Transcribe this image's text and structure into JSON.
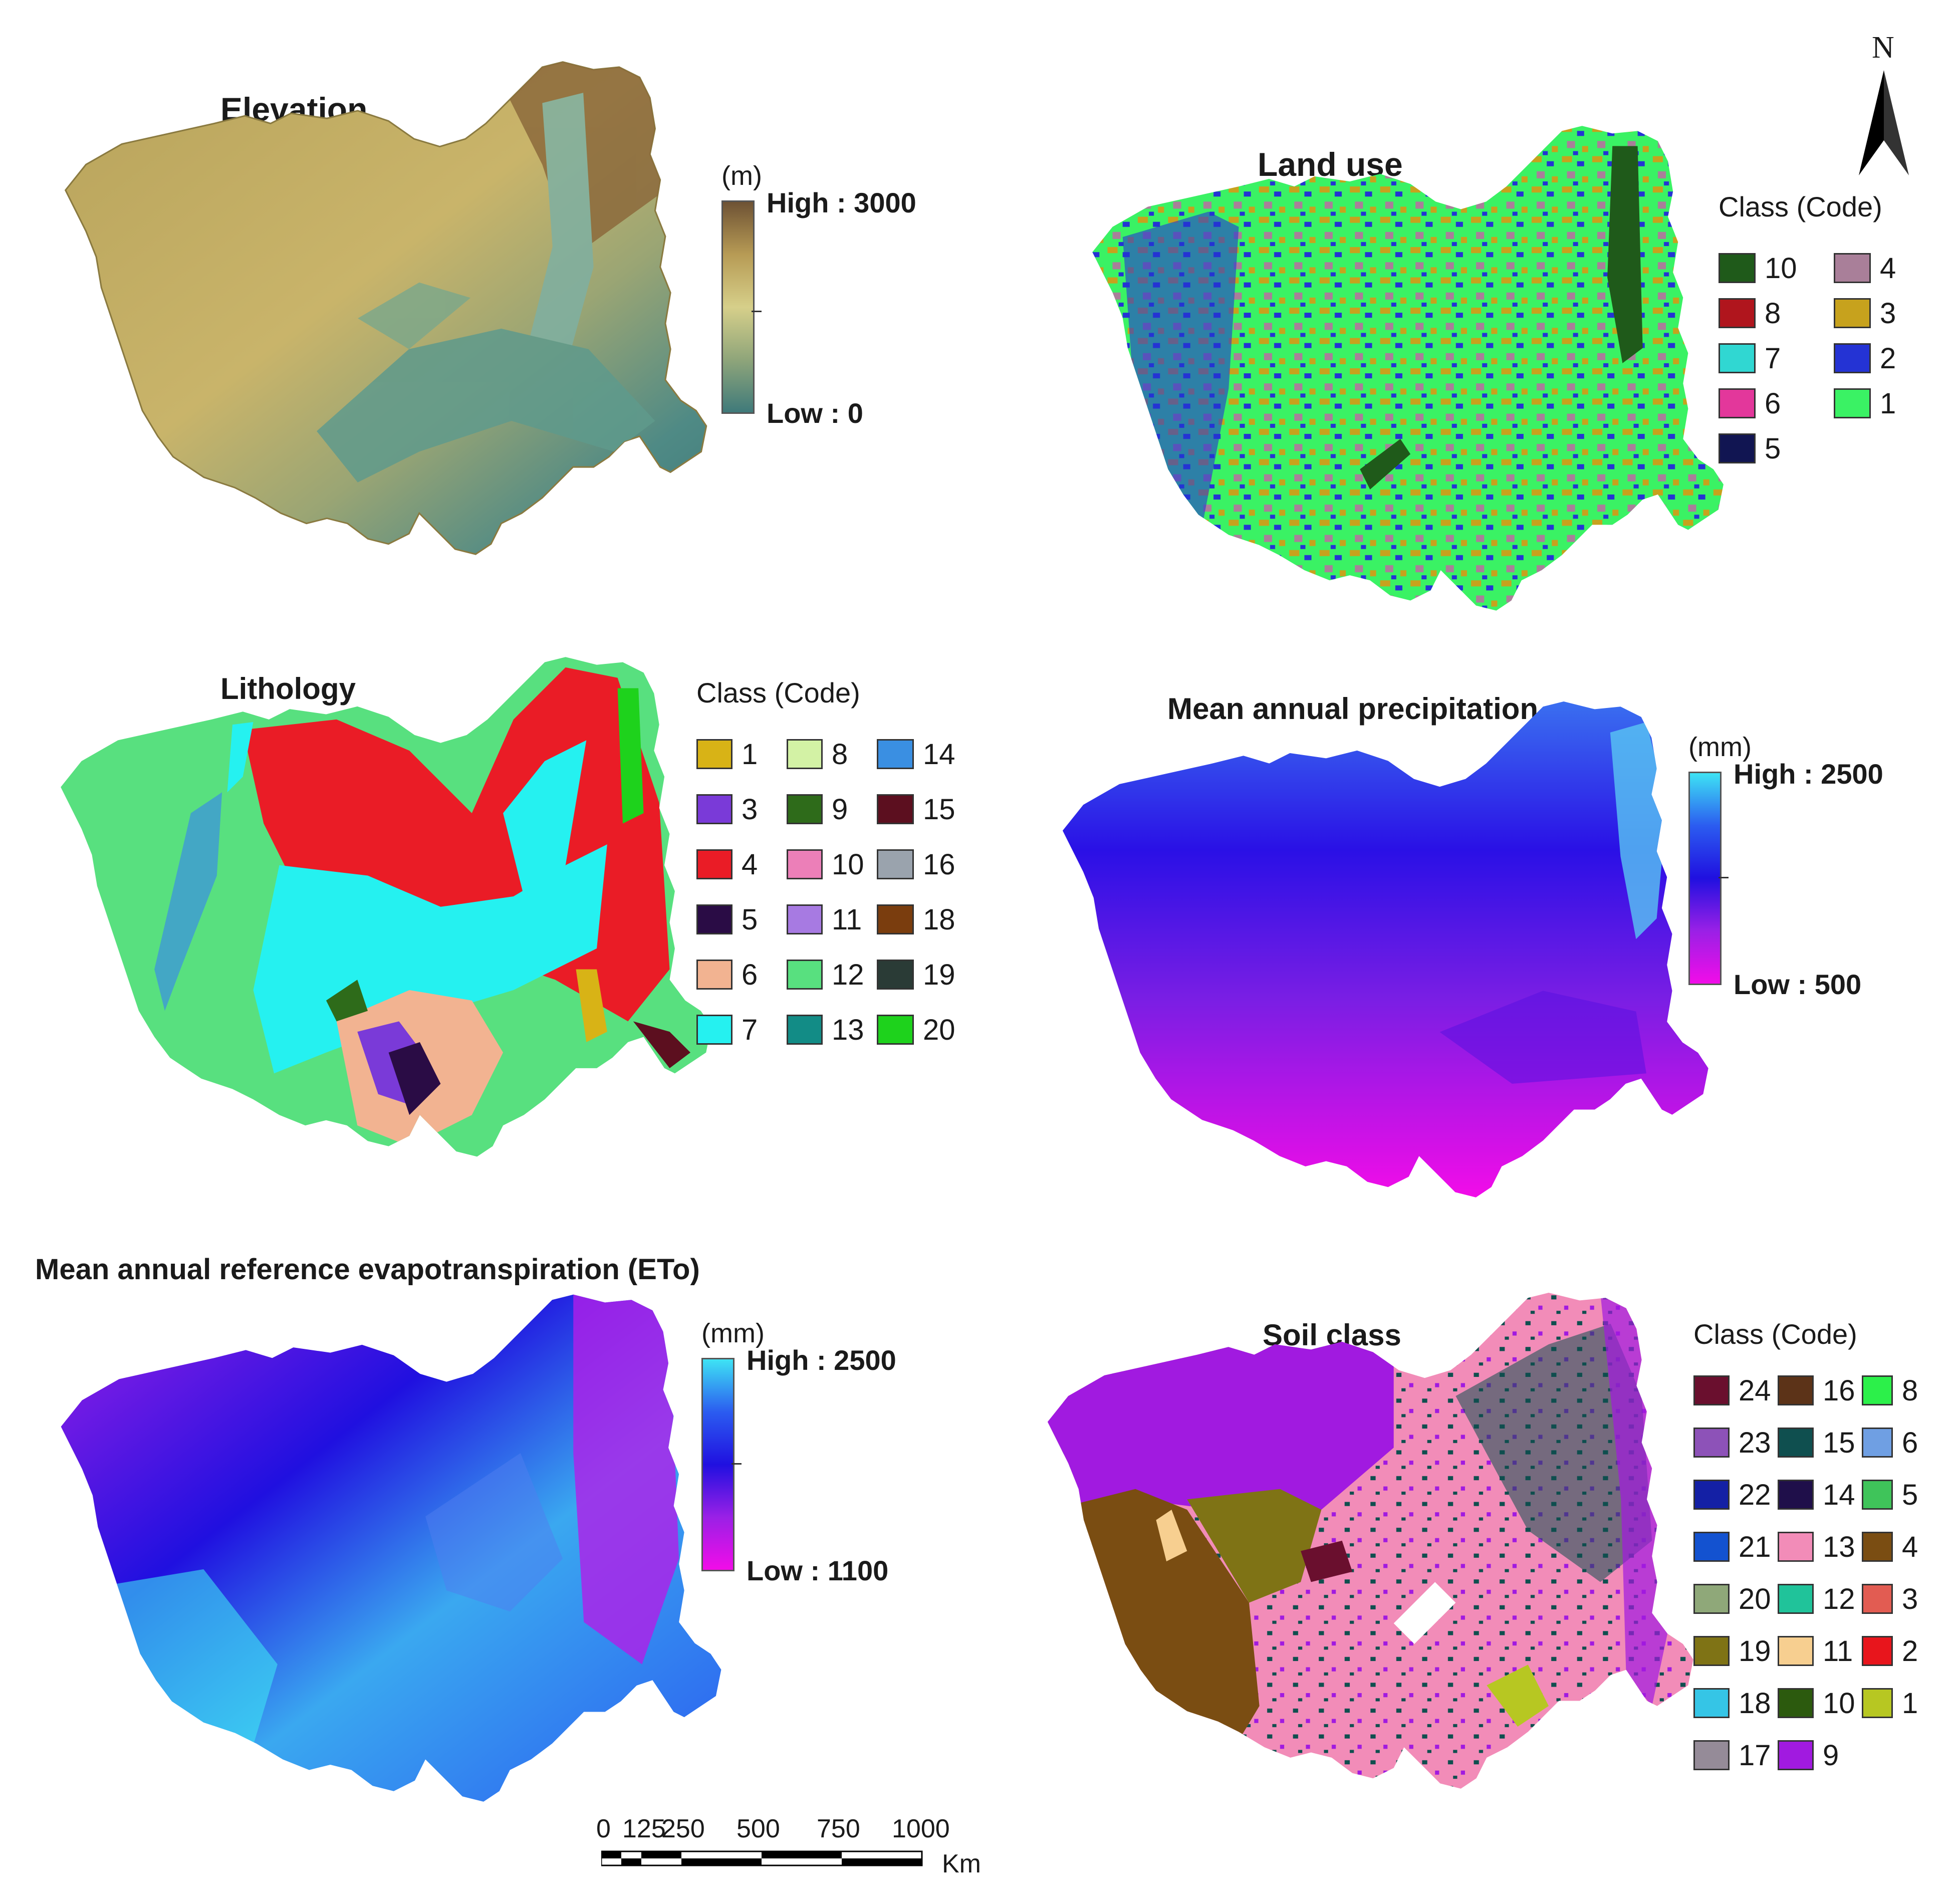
{
  "panels": {
    "elevation": {
      "title": "Elevation",
      "unit": "(m)",
      "high_label": "High : 3000",
      "low_label": "Low : 0",
      "ramp_colors": [
        "#6e5234",
        "#b79b55",
        "#d6cf8a",
        "#8fa57a",
        "#3f7a7a"
      ]
    },
    "land_use": {
      "title": "Land use",
      "legend_title": "Class (Code)",
      "classes": [
        {
          "code": "10",
          "color": "#1f5a1a"
        },
        {
          "code": "4",
          "color": "#a97f99"
        },
        {
          "code": "8",
          "color": "#b0151d"
        },
        {
          "code": "3",
          "color": "#c7a21d"
        },
        {
          "code": "7",
          "color": "#30d7d2"
        },
        {
          "code": "2",
          "color": "#2433d4"
        },
        {
          "code": "6",
          "color": "#e3379b"
        },
        {
          "code": "1",
          "color": "#3af264"
        },
        {
          "code": "5",
          "color": "#111552"
        }
      ]
    },
    "lithology": {
      "title": "Lithology",
      "legend_title": "Class (Code)",
      "classes": [
        {
          "code": "1",
          "color": "#d8b316"
        },
        {
          "code": "8",
          "color": "#d3f2a5"
        },
        {
          "code": "14",
          "color": "#3a8fe2"
        },
        {
          "code": "3",
          "color": "#7a3ad8"
        },
        {
          "code": "9",
          "color": "#2e6b1a"
        },
        {
          "code": "15",
          "color": "#5c0f1f"
        },
        {
          "code": "4",
          "color": "#ea1c26"
        },
        {
          "code": "10",
          "color": "#ec7fb8"
        },
        {
          "code": "16",
          "color": "#9aa3ad"
        },
        {
          "code": "5",
          "color": "#2a0c45"
        },
        {
          "code": "11",
          "color": "#a77ae2"
        },
        {
          "code": "18",
          "color": "#7a3d0e"
        },
        {
          "code": "6",
          "color": "#f2b391"
        },
        {
          "code": "12",
          "color": "#58e07f"
        },
        {
          "code": "19",
          "color": "#2a3b36"
        },
        {
          "code": "7",
          "color": "#25f1f0"
        },
        {
          "code": "13",
          "color": "#128c86"
        },
        {
          "code": "20",
          "color": "#1ed21c"
        }
      ]
    },
    "precipitation": {
      "title": "Mean annual precipitation",
      "unit": "(mm)",
      "high_label": "High : 2500",
      "low_label": "Low : 500",
      "ramp_colors": [
        "#3ee3f4",
        "#2b5cf0",
        "#2010e0",
        "#9a20e6",
        "#f20ce8"
      ]
    },
    "eto": {
      "title": "Mean annual reference evapotranspiration (ETo)",
      "unit": "(mm)",
      "high_label": "High : 2500",
      "low_label": "Low : 1100",
      "ramp_colors": [
        "#3ee3f4",
        "#2b5cf0",
        "#2010e0",
        "#9a20e6",
        "#f20ce8"
      ]
    },
    "soil": {
      "title": "Soil class",
      "legend_title": "Class (Code)",
      "classes": [
        {
          "code": "24",
          "color": "#6a0f2e"
        },
        {
          "code": "16",
          "color": "#5c3318"
        },
        {
          "code": "8",
          "color": "#2cf04a"
        },
        {
          "code": "23",
          "color": "#8d52b8"
        },
        {
          "code": "15",
          "color": "#0f4f4f"
        },
        {
          "code": "6",
          "color": "#6f9fe3"
        },
        {
          "code": "22",
          "color": "#1420a5"
        },
        {
          "code": "14",
          "color": "#1f0f4a"
        },
        {
          "code": "5",
          "color": "#3fc45a"
        },
        {
          "code": "21",
          "color": "#1352d0"
        },
        {
          "code": "13",
          "color": "#f28cb8"
        },
        {
          "code": "4",
          "color": "#7a4d12"
        },
        {
          "code": "20",
          "color": "#8fa879"
        },
        {
          "code": "12",
          "color": "#20c39a"
        },
        {
          "code": "3",
          "color": "#e25c52"
        },
        {
          "code": "19",
          "color": "#7f7315"
        },
        {
          "code": "11",
          "color": "#f7cf90"
        },
        {
          "code": "2",
          "color": "#e8151c"
        },
        {
          "code": "18",
          "color": "#35c5e6"
        },
        {
          "code": "10",
          "color": "#2c5a0e"
        },
        {
          "code": "1",
          "color": "#b7c722"
        },
        {
          "code": "17",
          "color": "#958b98"
        },
        {
          "code": "9",
          "color": "#a11ae0"
        }
      ]
    }
  },
  "north_arrow": {
    "label": "N"
  },
  "scale_bar": {
    "ticks": [
      "0",
      "125",
      "250",
      "500",
      "750",
      "1000"
    ],
    "unit": "Km"
  }
}
